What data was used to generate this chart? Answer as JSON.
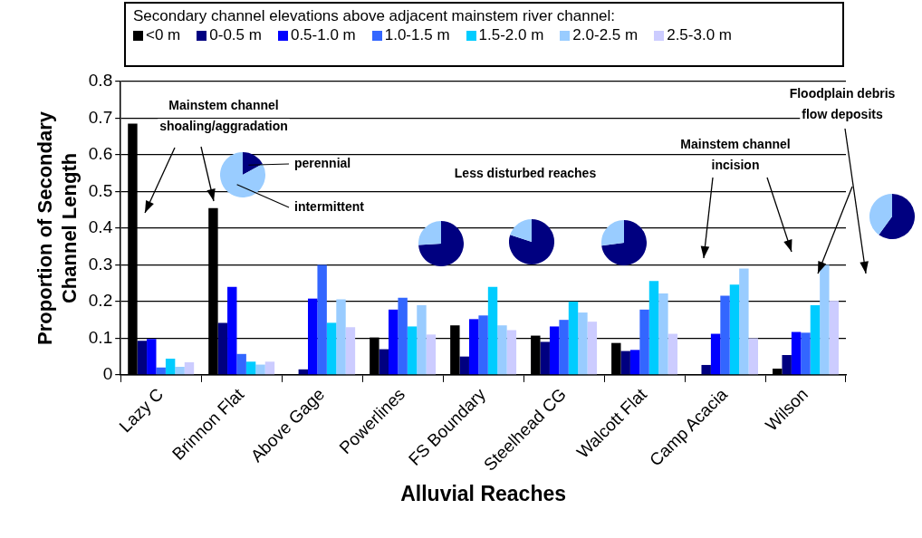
{
  "chart_data": [
    {
      "type": "bar",
      "xlabel": "Alluvial Reaches",
      "ylabel": "Proportion of Secondary\nChannel Length",
      "legend_title": "Secondary channel elevations above adjacent mainstem river channel:",
      "legend": "top",
      "grid": "y",
      "categories": [
        "Lazy C",
        "Brinnon Flat",
        "Above Gage",
        "Powerlines",
        "FS Boundary",
        "Steelhead CG",
        "Walcott Flat",
        "Camp Acacia",
        "Wilson"
      ],
      "ylim": [
        0,
        0.8
      ],
      "yticks": [
        0,
        0.1,
        0.2,
        0.3,
        0.4,
        0.5,
        0.6,
        0.7,
        0.8
      ],
      "series": [
        {
          "name": "<0 m",
          "color": "#000000",
          "values": [
            0.685,
            0.455,
            0,
            0.102,
            0.135,
            0.107,
            0.087,
            0.002,
            0.017
          ]
        },
        {
          "name": "0-0.5 m",
          "color": "#000080",
          "values": [
            0.093,
            0.142,
            0.015,
            0.07,
            0.05,
            0.09,
            0.065,
            0.027,
            0.054
          ]
        },
        {
          "name": "0.5-1.0 m",
          "color": "#0000ff",
          "values": [
            0.098,
            0.24,
            0.208,
            0.178,
            0.152,
            0.132,
            0.068,
            0.112,
            0.117
          ]
        },
        {
          "name": "1.0-1.5 m",
          "color": "#3366ff",
          "values": [
            0.02,
            0.057,
            0.3,
            0.21,
            0.162,
            0.15,
            0.178,
            0.216,
            0.115
          ]
        },
        {
          "name": "1.5-2.0 m",
          "color": "#00ccff",
          "values": [
            0.044,
            0.036,
            0.142,
            0.132,
            0.24,
            0.2,
            0.256,
            0.246,
            0.19
          ]
        },
        {
          "name": "2.0-2.5 m",
          "color": "#99ccff",
          "values": [
            0.022,
            0.028,
            0.206,
            0.19,
            0.135,
            0.17,
            0.222,
            0.29,
            0.3
          ]
        },
        {
          "name": "2.5-3.0 m",
          "color": "#ccccff",
          "values": [
            0.034,
            0.036,
            0.13,
            0.11,
            0.122,
            0.145,
            0.112,
            0.1,
            0.202
          ]
        }
      ],
      "annotations": [
        "Mainstem channel shoaling/aggradation",
        "Less disturbed reaches",
        "Mainstem channel incision",
        "Floodplain debris flow deposits"
      ]
    },
    {
      "type": "pie",
      "categories": [
        "perennial",
        "intermittent"
      ],
      "values": [
        17,
        83
      ],
      "colors": [
        "#000080",
        "#99ccff"
      ]
    },
    {
      "type": "pie",
      "categories": [
        null,
        null
      ],
      "values": [
        74,
        26
      ],
      "colors": [
        "#000080",
        "#99ccff"
      ]
    },
    {
      "type": "pie",
      "categories": [
        null,
        null
      ],
      "values": [
        80,
        20
      ],
      "colors": [
        "#000080",
        "#99ccff"
      ]
    },
    {
      "type": "pie",
      "categories": [
        null,
        null
      ],
      "values": [
        73,
        27
      ],
      "colors": [
        "#000080",
        "#99ccff"
      ]
    },
    {
      "type": "pie",
      "categories": [
        null,
        null
      ],
      "values": [
        60,
        40
      ],
      "colors": [
        "#000080",
        "#99ccff"
      ]
    }
  ]
}
